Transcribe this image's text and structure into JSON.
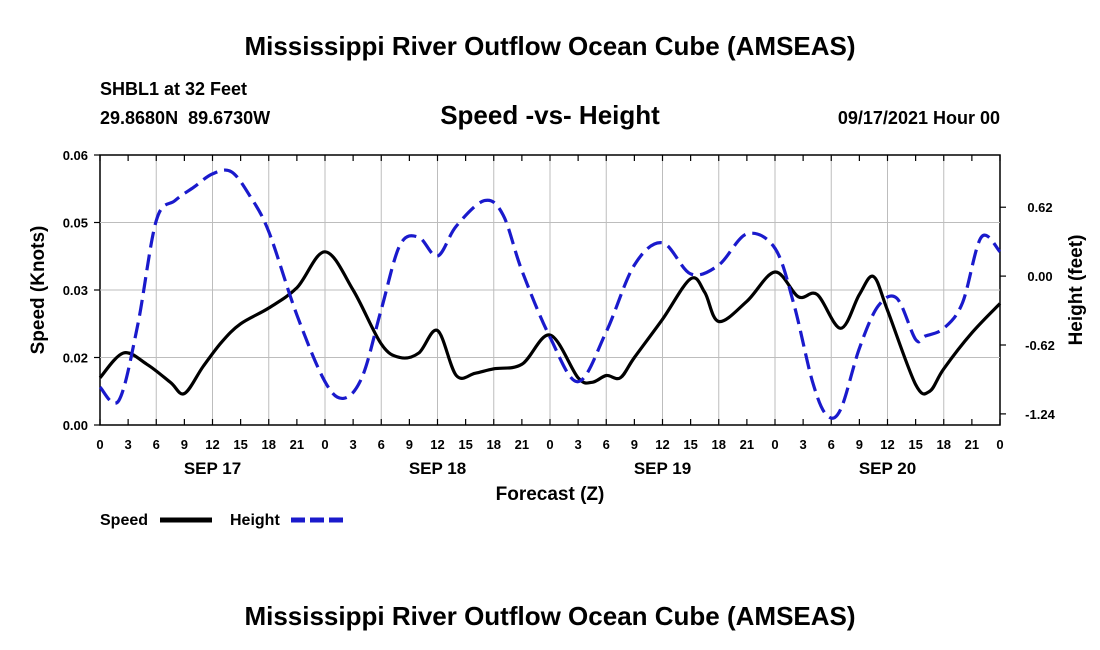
{
  "title": "Mississippi River Outflow Ocean Cube (AMSEAS)",
  "footer_title": "Mississippi River Outflow Ocean Cube (AMSEAS)",
  "station": "SHBL1 at 32 Feet",
  "coords": "29.8680N  89.6730W",
  "subtitle": "Speed -vs- Height",
  "date_label": "09/17/2021 Hour 00",
  "legend": {
    "speed": "Speed",
    "height": "Height"
  },
  "colors": {
    "speed": "#000000",
    "height": "#1a1acc"
  },
  "chart_data": {
    "type": "line",
    "title": "Speed -vs- Height",
    "xlabel": "Forecast (Z)",
    "ylabel": "Speed (Knots)",
    "y2label": "Height (feet)",
    "xlim": [
      0,
      96
    ],
    "ylim": [
      0.0,
      0.06
    ],
    "y2lim": [
      -1.34,
      1.09
    ],
    "x_tick_labels": [
      "0",
      "3",
      "6",
      "9",
      "12",
      "15",
      "18",
      "21",
      "0",
      "3",
      "6",
      "9",
      "12",
      "15",
      "18",
      "21",
      "0",
      "3",
      "6",
      "9",
      "12",
      "15",
      "18",
      "21",
      "0",
      "3",
      "6",
      "9",
      "12",
      "15",
      "18",
      "21",
      "0"
    ],
    "date_labels": [
      {
        "label": "SEP 17",
        "x": 12
      },
      {
        "label": "SEP 18",
        "x": 36
      },
      {
        "label": "SEP 19",
        "x": 60
      },
      {
        "label": "SEP 20",
        "x": 84
      }
    ],
    "y_ticks": [
      {
        "value": 0.0,
        "label": "0.00"
      },
      {
        "value": 0.015,
        "label": "0.02"
      },
      {
        "value": 0.03,
        "label": "0.03"
      },
      {
        "value": 0.045,
        "label": "0.05"
      },
      {
        "value": 0.06,
        "label": "0.06"
      }
    ],
    "y2_ticks": [
      {
        "value": 0.62,
        "label": "0.62"
      },
      {
        "value": 0.0,
        "label": "0.00"
      },
      {
        "value": -0.62,
        "label": "-0.62"
      },
      {
        "value": -1.24,
        "label": "-1.24"
      }
    ],
    "series": [
      {
        "name": "Speed",
        "axis": "left",
        "x": [
          0,
          2.5,
          5,
          7.5,
          9,
          11,
          13,
          15,
          18,
          21,
          24,
          27,
          30,
          32,
          34,
          36,
          38,
          40,
          42,
          45,
          48,
          51,
          52.5,
          54,
          55.5,
          57,
          60,
          63,
          64.5,
          66,
          69,
          72,
          74.5,
          76.5,
          79,
          81,
          82.5,
          84,
          87,
          88.5,
          90,
          93,
          96
        ],
        "values": [
          0.0105,
          0.016,
          0.0135,
          0.0095,
          0.007,
          0.013,
          0.0185,
          0.0225,
          0.026,
          0.0305,
          0.0385,
          0.03,
          0.018,
          0.015,
          0.016,
          0.021,
          0.011,
          0.0115,
          0.0125,
          0.0135,
          0.02,
          0.0105,
          0.0095,
          0.011,
          0.0105,
          0.015,
          0.0235,
          0.0325,
          0.0295,
          0.023,
          0.0275,
          0.034,
          0.0285,
          0.029,
          0.0215,
          0.029,
          0.033,
          0.0255,
          0.009,
          0.0075,
          0.0125,
          0.0205,
          0.027
        ]
      },
      {
        "name": "Height",
        "axis": "right",
        "x": [
          0,
          2,
          4,
          6,
          8,
          10,
          12,
          14,
          16,
          18,
          21,
          24,
          26,
          28,
          30,
          32,
          34,
          36,
          38,
          41,
          43,
          45,
          48,
          51,
          54,
          57,
          60,
          63,
          66,
          69,
          72,
          74,
          76,
          77.5,
          79,
          81,
          83,
          85,
          87,
          88,
          90,
          92,
          94,
          96
        ],
        "values": [
          -1.0,
          -1.12,
          -0.45,
          0.5,
          0.68,
          0.8,
          0.92,
          0.94,
          0.72,
          0.4,
          -0.35,
          -0.95,
          -1.1,
          -0.9,
          -0.3,
          0.28,
          0.35,
          0.18,
          0.45,
          0.68,
          0.55,
          0.05,
          -0.55,
          -0.95,
          -0.5,
          0.1,
          0.3,
          0.02,
          0.1,
          0.38,
          0.25,
          -0.25,
          -0.95,
          -1.25,
          -1.2,
          -0.65,
          -0.27,
          -0.2,
          -0.57,
          -0.54,
          -0.47,
          -0.24,
          0.35,
          0.22
        ]
      }
    ]
  }
}
